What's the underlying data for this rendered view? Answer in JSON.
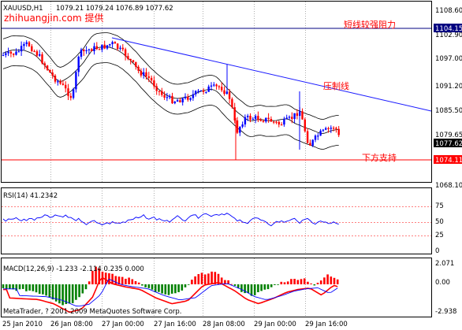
{
  "colors": {
    "bull": "#0000ff",
    "bear": "#ff0000",
    "bands": "#000000",
    "trendline": "#1a1aff",
    "hline": "#ff0000",
    "hline2": "#000080",
    "grid": "#777777",
    "watermark": "#ff0000",
    "macd_pos": "#ff0000",
    "macd_neg": "#008000",
    "rsi": "#0000ff",
    "signal": "#ff0000",
    "rsi_levels": "#ff0000",
    "price_tag_bg": "#000000",
    "support_tag_bg": "#ff0000",
    "resist_tag_bg": "#000080"
  },
  "header": {
    "symbol": "XAUUSD,H1",
    "ohlc": "1079.21 1079.24 1076.89 1077.62"
  },
  "watermark": "zhihuangjin.com 提供",
  "annotations": {
    "resistance_label": "短线较强阻力",
    "pressure_label": "压制线",
    "support_label": "下方支持"
  },
  "price_tags": {
    "resistance": "1104.15",
    "current": "1077.62",
    "support": "1074.11"
  },
  "price_axis": [
    "1108.60",
    "1102.90",
    "1097.00",
    "1091.20",
    "1085.50",
    "1079.65",
    "1068.10"
  ],
  "rsi": {
    "label": "RSI(14) 41.2342",
    "ticks": [
      "75",
      "50",
      "25",
      "0"
    ]
  },
  "macd": {
    "label": "MACD(12,26,9) -1.233 -2.114 0.235 0.000",
    "ticks": [
      "2.071",
      "0.00",
      "-2.938"
    ]
  },
  "time_axis": [
    "25 Jan 2010",
    "26 Jan 08:00",
    "27 Jan 00:00",
    "27 Jan 16:00",
    "28 Jan 08:00",
    "29 Jan 00:00",
    "29 Jan 16:00"
  ],
  "copyright": "MetaTrader, ? 2001-2009 MetaQuotes Software Corp."
}
